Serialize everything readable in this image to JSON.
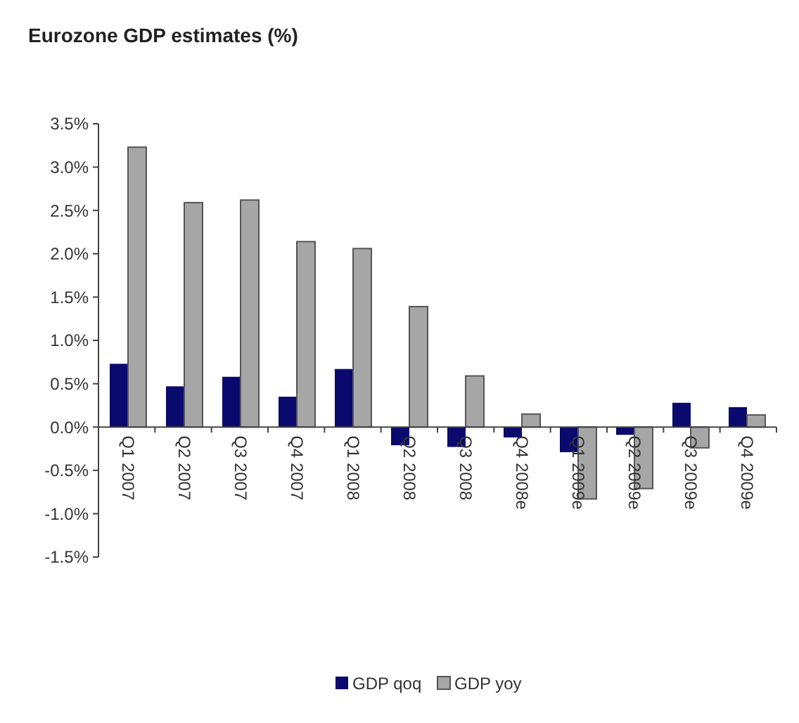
{
  "chart_data": {
    "type": "bar",
    "title": "Eurozone GDP estimates (%)",
    "categories": [
      "Q1 2007",
      "Q2 2007",
      "Q3 2007",
      "Q4 2007",
      "Q1 2008",
      "Q2 2008",
      "Q3 2008",
      "Q4 2008e",
      "Q1 2009e",
      "Q2 2009e",
      "Q3 2009e",
      "Q4 2009e"
    ],
    "series": [
      {
        "name": "GDP qoq",
        "color": "#0a0a6e",
        "values": [
          0.73,
          0.47,
          0.58,
          0.35,
          0.67,
          -0.21,
          -0.23,
          -0.12,
          -0.29,
          -0.09,
          0.28,
          0.23
        ]
      },
      {
        "name": "GDP yoy",
        "color": "#a6a6a6",
        "values": [
          3.23,
          2.59,
          2.62,
          2.14,
          2.06,
          1.39,
          0.59,
          0.15,
          -0.83,
          -0.71,
          -0.24,
          0.14
        ]
      }
    ],
    "ylim": [
      -1.5,
      3.5
    ],
    "yticks": [
      {
        "value": -1.5,
        "label": "-1.5%"
      },
      {
        "value": -1,
        "label": "-1.0%"
      },
      {
        "value": -0.5,
        "label": "-0.5%"
      },
      {
        "value": 0,
        "label": "0.0%"
      },
      {
        "value": 0.5,
        "label": "0.5%"
      },
      {
        "value": 1,
        "label": "1.0%"
      },
      {
        "value": 1.5,
        "label": "1.5%"
      },
      {
        "value": 2,
        "label": "2.0%"
      },
      {
        "value": 2.5,
        "label": "2.5%"
      },
      {
        "value": 3,
        "label": "3.0%"
      },
      {
        "value": 3.5,
        "label": "3.5%"
      }
    ],
    "legend": "bottom",
    "grid": false
  }
}
